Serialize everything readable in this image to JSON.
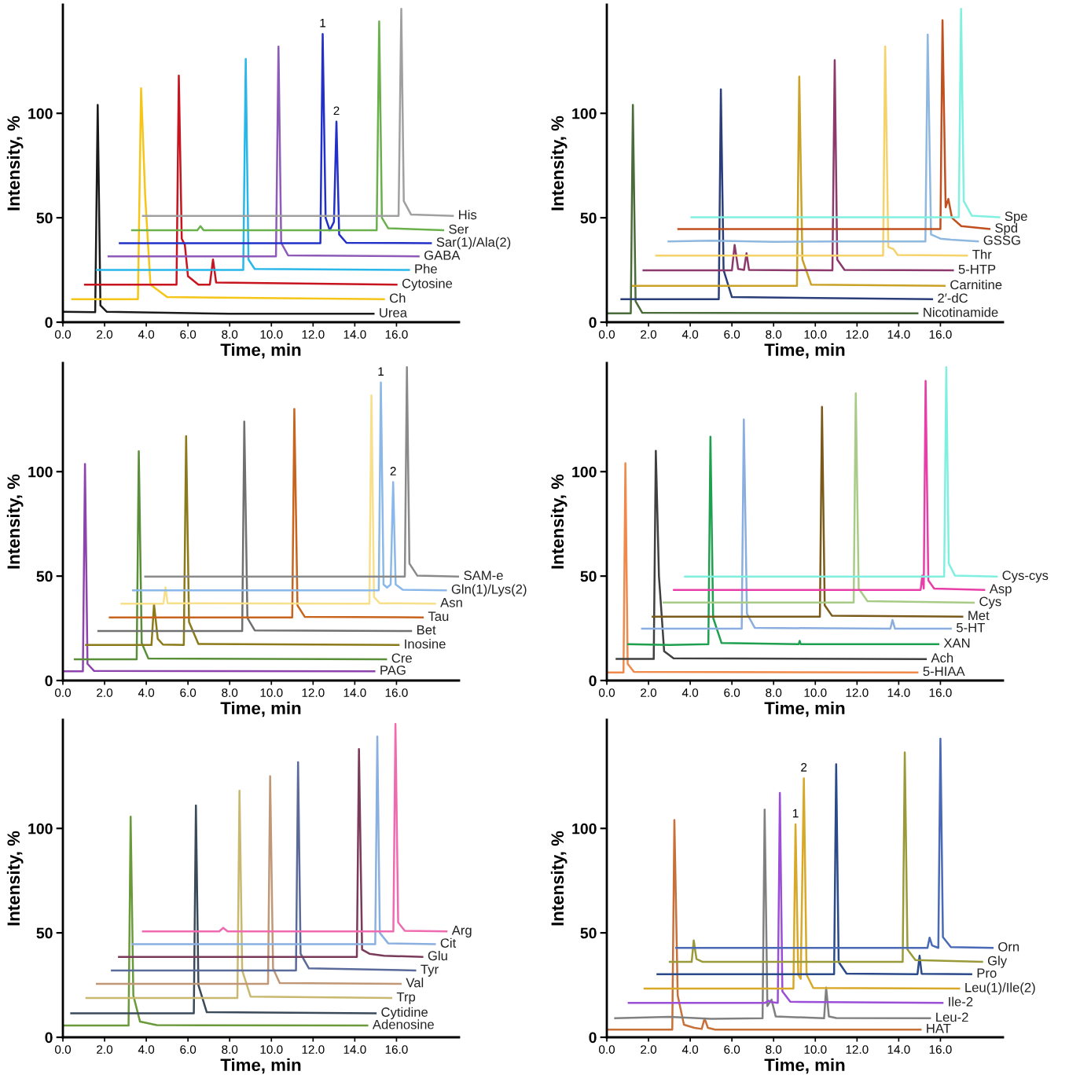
{
  "chart_data": [
    {
      "type": "line",
      "xlabel": "Time, min",
      "ylabel": "Intensity, %",
      "xlim": [
        0,
        19
      ],
      "ylim": [
        0,
        152
      ],
      "xticks": [
        {
          "value": 0,
          "label": "0.0"
        },
        {
          "value": 2,
          "label": "2.0"
        },
        {
          "value": 4,
          "label": "4.0"
        },
        {
          "value": 6,
          "label": "6.0"
        },
        {
          "value": 8,
          "label": "8.0"
        },
        {
          "value": 10,
          "label": "10.0"
        },
        {
          "value": 12,
          "label": "12.0"
        },
        {
          "value": 14,
          "label": "14.0"
        },
        {
          "value": 16,
          "label": "16.0"
        }
      ],
      "yticks": [
        0,
        50,
        100
      ],
      "annotations": [
        {
          "text": "1",
          "x": 12.46,
          "y": 138
        },
        {
          "text": "2",
          "x": 13.12,
          "y": 96
        }
      ],
      "series": [
        {
          "name": "Urea",
          "color": "#1a1a1a",
          "x": [
            0,
            1.55,
            1.67,
            1.8,
            2.1,
            8,
            14.9
          ],
          "values": [
            5,
            4.8,
            104,
            8,
            5,
            4,
            4
          ]
        },
        {
          "name": "Ch",
          "color": "#f5c518",
          "x": [
            0.45,
            3.6,
            3.75,
            3.95,
            4.2,
            5,
            15.4
          ],
          "values": [
            11,
            11,
            112,
            60,
            18,
            12,
            11
          ]
        },
        {
          "name": "Cytosine",
          "color": "#c8141e",
          "x": [
            1.06,
            5.45,
            5.56,
            5.7,
            5.85,
            6.0,
            6.5,
            7.05,
            7.2,
            7.35,
            16.0
          ],
          "values": [
            18,
            18,
            118,
            40,
            37,
            22,
            18,
            18,
            30,
            19,
            18
          ]
        },
        {
          "name": "Phe",
          "color": "#29b6e8",
          "x": [
            1.63,
            8.65,
            8.77,
            8.9,
            9.2,
            16.6
          ],
          "values": [
            25,
            25,
            126,
            30,
            25.5,
            25
          ]
        },
        {
          "name": "GABA",
          "color": "#8e5cb8",
          "x": [
            2.19,
            10.22,
            10.34,
            10.47,
            10.8,
            17.06
          ],
          "values": [
            31.5,
            31.5,
            132,
            38,
            32,
            31.5
          ]
        },
        {
          "name": "Sar(1)/Ala(2)",
          "color": "#2230c8",
          "x": [
            2.73,
            12.35,
            12.46,
            12.6,
            12.8,
            13.0,
            13.12,
            13.25,
            13.6,
            17.65
          ],
          "values": [
            37.8,
            37.8,
            138,
            50,
            44,
            48,
            96,
            42,
            38,
            37.8
          ]
        },
        {
          "name": "Ser",
          "color": "#6ab04c",
          "x": [
            3.32,
            6.45,
            6.6,
            6.75,
            15.05,
            15.17,
            15.3,
            15.6,
            18.24
          ],
          "values": [
            44,
            44,
            46,
            44,
            44,
            144,
            50,
            45,
            44
          ]
        },
        {
          "name": "His",
          "color": "#a0a0a0",
          "x": [
            3.84,
            16.1,
            16.23,
            16.35,
            16.7,
            18.7
          ],
          "values": [
            50.9,
            50.9,
            150,
            58,
            51.5,
            50.9
          ]
        }
      ]
    },
    {
      "type": "line",
      "xlabel": "Time, min",
      "ylabel": "Intensity, %",
      "xlim": [
        0,
        19
      ],
      "ylim": [
        0,
        152
      ],
      "xticks": [
        {
          "value": 0,
          "label": "0.0"
        },
        {
          "value": 2,
          "label": "2.0"
        },
        {
          "value": 4,
          "label": "4.0"
        },
        {
          "value": 6,
          "label": "6.0"
        },
        {
          "value": 8,
          "label": "8.0"
        },
        {
          "value": 10,
          "label": "10.0"
        },
        {
          "value": 12,
          "label": "12.0"
        },
        {
          "value": 14,
          "label": "14.0"
        },
        {
          "value": 16,
          "label": "16.0"
        }
      ],
      "yticks": [
        0,
        50,
        100
      ],
      "series": [
        {
          "name": "Nicotinamide",
          "color": "#4a6b3a",
          "x": [
            0,
            1.15,
            1.25,
            1.38,
            1.7,
            14.9
          ],
          "values": [
            4.2,
            4.2,
            104,
            10,
            4.5,
            4.2
          ]
        },
        {
          "name": "2′-dC",
          "color": "#2a3f7a",
          "x": [
            0.7,
            5.37,
            5.47,
            5.6,
            6.0,
            15.6
          ],
          "values": [
            11,
            11,
            111.5,
            25,
            12,
            11
          ]
        },
        {
          "name": "Carnitine",
          "color": "#c9a227",
          "x": [
            1.25,
            9.12,
            9.23,
            9.38,
            9.8,
            16.2
          ],
          "values": [
            17.4,
            17.4,
            117.6,
            30,
            18,
            17.4
          ]
        },
        {
          "name": "5-HTP",
          "color": "#8b3a6b",
          "x": [
            1.76,
            6.0,
            6.13,
            6.3,
            6.58,
            6.7,
            6.82,
            10.82,
            10.93,
            11.05,
            11.4,
            16.6
          ],
          "values": [
            24.8,
            24.8,
            37,
            25.5,
            25,
            33,
            25,
            24.8,
            125.5,
            30,
            25,
            24.8
          ]
        },
        {
          "name": "Thr",
          "color": "#f5d36a",
          "x": [
            2.37,
            13.25,
            13.35,
            13.5,
            13.75,
            13.95,
            17.27
          ],
          "values": [
            31.9,
            31.9,
            132,
            36,
            35,
            32.2,
            31.9
          ]
        },
        {
          "name": "GSSG",
          "color": "#8fb8e0",
          "x": [
            2.96,
            5,
            8,
            11,
            15.28,
            15.39,
            15.55,
            16,
            16.5,
            17.8
          ],
          "values": [
            38.7,
            39,
            38.5,
            38.7,
            38.7,
            137.7,
            42,
            40,
            39.5,
            38.7
          ]
        },
        {
          "name": "Spd",
          "color": "#c0501f",
          "x": [
            3.43,
            16.0,
            16.1,
            16.25,
            16.38,
            16.55,
            17.0,
            18.35
          ],
          "values": [
            44.6,
            44.6,
            144.6,
            55,
            59,
            50,
            46,
            44.6
          ]
        },
        {
          "name": "Spe",
          "color": "#80f0e0",
          "x": [
            4.06,
            16.88,
            16.99,
            17.12,
            17.5,
            18.82
          ],
          "values": [
            50.2,
            50.2,
            150,
            58,
            51,
            50.2
          ]
        }
      ]
    },
    {
      "type": "line",
      "xlabel": "Time, min",
      "ylabel": "Intensity, %",
      "xlim": [
        0,
        19
      ],
      "ylim": [
        0,
        152
      ],
      "xticks": [
        {
          "value": 0,
          "label": "0.0"
        },
        {
          "value": 2,
          "label": "2.0"
        },
        {
          "value": 4,
          "label": "4.0"
        },
        {
          "value": 6,
          "label": "6.0"
        },
        {
          "value": 8,
          "label": "8.0"
        },
        {
          "value": 10,
          "label": "10.0"
        },
        {
          "value": 12,
          "label": "12.0"
        },
        {
          "value": 14,
          "label": "14.0"
        },
        {
          "value": 16,
          "label": "16.0"
        }
      ],
      "yticks": [
        0,
        50,
        100
      ],
      "annotations": [
        {
          "text": "1",
          "x": 15.25,
          "y": 142.7
        },
        {
          "text": "2",
          "x": 15.84,
          "y": 95
        }
      ],
      "series": [
        {
          "name": "PAG",
          "color": "#8e44ad",
          "x": [
            0,
            0.96,
            1.06,
            1.18,
            1.5,
            14.94
          ],
          "values": [
            4.4,
            4.4,
            103.7,
            8,
            4.6,
            4.4
          ]
        },
        {
          "name": "Cre",
          "color": "#5a8f3a",
          "x": [
            0.57,
            3.54,
            3.64,
            3.78,
            4.1,
            15.5
          ],
          "values": [
            10.2,
            10.2,
            109.8,
            18,
            10.5,
            10.2
          ]
        },
        {
          "name": "Inosine",
          "color": "#8b7a1a",
          "x": [
            1.11,
            4.25,
            4.37,
            4.55,
            4.8,
            5.8,
            5.91,
            6.05,
            6.5,
            16.1
          ],
          "values": [
            17,
            17,
            36.6,
            20,
            17.2,
            17,
            117,
            28,
            17.5,
            17
          ]
        },
        {
          "name": "Bet",
          "color": "#707070",
          "x": [
            1.7,
            8.6,
            8.7,
            8.85,
            9.2,
            16.7
          ],
          "values": [
            23.7,
            23.7,
            124,
            30,
            24,
            23.7
          ]
        },
        {
          "name": "Tau",
          "color": "#c8641e",
          "x": [
            2.25,
            11.0,
            11.1,
            11.25,
            11.6,
            17.26
          ],
          "values": [
            30.2,
            30.2,
            130,
            36,
            30.5,
            30.2
          ]
        },
        {
          "name": "Asn",
          "color": "#f8df8a",
          "x": [
            2.81,
            4.82,
            4.92,
            5.02,
            14.7,
            14.8,
            14.92,
            15.2,
            17.85
          ],
          "values": [
            36.8,
            36.8,
            44.6,
            37,
            36.8,
            136.6,
            40,
            37,
            36.8
          ]
        },
        {
          "name": "Gln(1)/Lys(2)",
          "color": "#8ab8e8",
          "x": [
            3.36,
            15.15,
            15.25,
            15.38,
            15.55,
            15.72,
            15.84,
            15.96,
            16.3,
            18.37
          ],
          "values": [
            43.2,
            43.2,
            142.7,
            46,
            44.5,
            46,
            95,
            46,
            43.5,
            43.2
          ]
        },
        {
          "name": "SAM-e",
          "color": "#8a8a8a",
          "x": [
            3.95,
            16.4,
            16.5,
            16.62,
            17.0,
            18.96
          ],
          "values": [
            49.8,
            49.8,
            150,
            56,
            50.2,
            49.8
          ]
        }
      ]
    },
    {
      "type": "line",
      "xlabel": "Time, min",
      "ylabel": "Intensity, %",
      "xlim": [
        0,
        19
      ],
      "ylim": [
        0,
        152
      ],
      "xticks": [
        {
          "value": 0,
          "label": "0.0"
        },
        {
          "value": 2,
          "label": "2.0"
        },
        {
          "value": 4,
          "label": "4.0"
        },
        {
          "value": 6,
          "label": "6.0"
        },
        {
          "value": 8,
          "label": "8.0"
        },
        {
          "value": 10,
          "label": "10.0"
        },
        {
          "value": 12,
          "label": "12.0"
        },
        {
          "value": 14,
          "label": "14.0"
        },
        {
          "value": 16,
          "label": "16.0"
        }
      ],
      "yticks": [
        0,
        50,
        100
      ],
      "series": [
        {
          "name": "5-HIAA",
          "color": "#f08a4b",
          "x": [
            0,
            0.8,
            0.89,
            1.0,
            1.3,
            14.9
          ],
          "values": [
            3.9,
            3.9,
            104,
            8,
            4.1,
            3.9
          ]
        },
        {
          "name": "Ach",
          "color": "#404040",
          "x": [
            0.47,
            2.25,
            2.35,
            2.5,
            2.75,
            3.2,
            15.3
          ],
          "values": [
            10.3,
            10.3,
            110,
            50,
            14,
            10.6,
            10.3
          ]
        },
        {
          "name": "XAN",
          "color": "#1fa050",
          "x": [
            1.03,
            3,
            4.87,
            4.97,
            5.1,
            5.5,
            9.2,
            9.25,
            9.3,
            15.9
          ],
          "values": [
            17.4,
            17,
            17.4,
            116.7,
            30,
            18,
            17.4,
            19,
            17.4,
            17.4
          ]
        },
        {
          "name": "5-HT",
          "color": "#8aaee0",
          "x": [
            1.69,
            6.47,
            6.57,
            6.72,
            7.1,
            13.6,
            13.7,
            13.82,
            16.5
          ],
          "values": [
            24.8,
            24.8,
            125,
            32,
            25.2,
            24.8,
            29,
            24.8,
            24.8
          ]
        },
        {
          "name": "Met",
          "color": "#7a5a1a",
          "x": [
            2.2,
            10.22,
            10.32,
            10.45,
            10.8,
            17.05
          ],
          "values": [
            30.6,
            30.6,
            131,
            36,
            31,
            30.6
          ]
        },
        {
          "name": "Cys",
          "color": "#a8cc88",
          "x": [
            2.72,
            11.84,
            11.94,
            12.08,
            12.5,
            17.6
          ],
          "values": [
            37.3,
            37.3,
            137.5,
            44,
            38,
            37.3
          ]
        },
        {
          "name": "Asp",
          "color": "#e83ea8",
          "x": [
            3.22,
            15.05,
            15.13,
            15.2,
            15.29,
            15.42,
            15.7,
            18.1
          ],
          "values": [
            43.4,
            43.4,
            50.2,
            44,
            143.4,
            48,
            44,
            43.4
          ]
        },
        {
          "name": "Cys-cys",
          "color": "#7ff0e0",
          "x": [
            3.75,
            16.18,
            16.28,
            16.4,
            16.7,
            18.7
          ],
          "values": [
            49.8,
            49.8,
            150,
            56,
            50.2,
            49.8
          ]
        }
      ]
    },
    {
      "type": "line",
      "xlabel": "Time, min",
      "ylabel": "Intensity, %",
      "xlim": [
        0,
        19
      ],
      "ylim": [
        0,
        152
      ],
      "xticks": [
        {
          "value": 0,
          "label": "0.0"
        },
        {
          "value": 2,
          "label": "2.0"
        },
        {
          "value": 4,
          "label": "4.0"
        },
        {
          "value": 6,
          "label": "6.0"
        },
        {
          "value": 8,
          "label": "8.0"
        },
        {
          "value": 10,
          "label": "10.0"
        },
        {
          "value": 12,
          "label": "12.0"
        },
        {
          "value": 14,
          "label": "14.0"
        },
        {
          "value": 16,
          "label": "16.0"
        }
      ],
      "yticks": [
        0,
        50,
        100
      ],
      "series": [
        {
          "name": "Adenosine",
          "color": "#6a9a3a",
          "x": [
            0,
            3.15,
            3.25,
            3.38,
            3.7,
            4.5,
            14.6
          ],
          "values": [
            5.6,
            5.6,
            105.6,
            20,
            7.5,
            5.8,
            5.6
          ]
        },
        {
          "name": "Cytidine",
          "color": "#3a4a5a",
          "x": [
            0.4,
            6.28,
            6.38,
            6.5,
            6.9,
            15.0
          ],
          "values": [
            11.5,
            11.5,
            111,
            25,
            12,
            11.5
          ]
        },
        {
          "name": "Trp",
          "color": "#c8b870",
          "x": [
            1.13,
            8.37,
            8.47,
            8.6,
            9.0,
            15.75
          ],
          "values": [
            18.8,
            18.8,
            118,
            32,
            19.5,
            18.8
          ]
        },
        {
          "name": "Val",
          "color": "#c09878",
          "x": [
            1.63,
            9.84,
            9.94,
            10.08,
            10.4,
            16.2
          ],
          "values": [
            25.6,
            25.6,
            125,
            33,
            26,
            25.6
          ]
        },
        {
          "name": "Tyr",
          "color": "#5a6a9a",
          "x": [
            2.35,
            11.18,
            11.28,
            11.4,
            11.8,
            16.9
          ],
          "values": [
            32,
            32,
            131.7,
            40,
            33,
            32
          ]
        },
        {
          "name": "Glu",
          "color": "#7a3a5a",
          "x": [
            2.69,
            14.1,
            14.2,
            14.35,
            14.7,
            15.4,
            17.24
          ],
          "values": [
            38.5,
            38.5,
            138,
            42,
            40,
            39,
            38.5
          ]
        },
        {
          "name": "Cit",
          "color": "#8ab0e0",
          "x": [
            3.34,
            14.98,
            15.08,
            15.2,
            15.6,
            17.84
          ],
          "values": [
            44.6,
            44.6,
            144,
            50,
            45,
            44.6
          ]
        },
        {
          "name": "Arg",
          "color": "#f06ab0",
          "x": [
            3.84,
            7.5,
            7.69,
            7.9,
            15.85,
            15.95,
            16.08,
            16.4,
            18.4
          ],
          "values": [
            50.7,
            50.7,
            52.4,
            50.7,
            50.7,
            150,
            55,
            51,
            50.7
          ]
        }
      ]
    },
    {
      "type": "line",
      "xlabel": "Time, min",
      "ylabel": "Intensity, %",
      "xlim": [
        0,
        19
      ],
      "ylim": [
        0,
        152
      ],
      "xticks": [
        {
          "value": 0,
          "label": "0.0"
        },
        {
          "value": 2,
          "label": "2.0"
        },
        {
          "value": 4,
          "label": "4.0"
        },
        {
          "value": 6,
          "label": "6.0"
        },
        {
          "value": 8,
          "label": "8.0"
        },
        {
          "value": 10,
          "label": "10.0"
        },
        {
          "value": 12,
          "label": "12.0"
        },
        {
          "value": 14,
          "label": "14.0"
        },
        {
          "value": 16,
          "label": "16.0"
        }
      ],
      "yticks": [
        0,
        50,
        100
      ],
      "annotations": [
        {
          "text": "1",
          "x": 9.05,
          "y": 102
        },
        {
          "text": "2",
          "x": 9.45,
          "y": 124
        }
      ],
      "series": [
        {
          "name": "HAT",
          "color": "#c8703a",
          "x": [
            0,
            3.14,
            3.24,
            3.4,
            3.7,
            4.2,
            4.55,
            4.69,
            4.85,
            5.2,
            15.05
          ],
          "values": [
            3.7,
            3.7,
            104,
            20,
            6,
            4.5,
            4,
            9,
            4.5,
            3.7,
            3.7
          ]
        },
        {
          "name": "Leu-2",
          "color": "#808080",
          "x": [
            0.4,
            3,
            5,
            7.47,
            7.57,
            7.7,
            7.9,
            8.1,
            10.42,
            10.52,
            10.65,
            11,
            15.5
          ],
          "values": [
            9.1,
            9.8,
            8.8,
            9.1,
            109,
            15,
            18,
            10,
            9.1,
            23.8,
            10,
            9.2,
            9.1
          ]
        },
        {
          "name": "Ile-2",
          "color": "#9b4fd8",
          "x": [
            1.05,
            7.6,
            7.75,
            7.9,
            8.2,
            8.3,
            8.42,
            8.8,
            16.1
          ],
          "values": [
            16.5,
            16.5,
            17.5,
            16.8,
            16.5,
            117,
            22,
            17,
            16.5
          ]
        },
        {
          "name": "Leu(1)/Ile(2)",
          "color": "#d8a828",
          "x": [
            1.81,
            8.95,
            9.05,
            9.18,
            9.3,
            9.45,
            9.58,
            9.9,
            16.9
          ],
          "values": [
            23.3,
            23.3,
            102,
            30,
            28,
            124,
            30,
            23.6,
            23.3
          ]
        },
        {
          "name": "Pro",
          "color": "#2a4a8a",
          "x": [
            2.43,
            10.9,
            11.0,
            11.12,
            11.5,
            14.9,
            15.0,
            15.1,
            17.48
          ],
          "values": [
            30.2,
            30.2,
            130.7,
            36,
            30.5,
            30.2,
            39,
            30.4,
            30.2
          ]
        },
        {
          "name": "Gly",
          "color": "#9a9a3a",
          "x": [
            3.02,
            4.07,
            4.17,
            4.3,
            4.6,
            14.19,
            14.29,
            14.42,
            14.8,
            18.0
          ],
          "values": [
            36.1,
            36.1,
            46.4,
            37.5,
            36.1,
            36.1,
            136.4,
            42,
            37,
            36.1
          ]
        },
        {
          "name": "Orn",
          "color": "#4a6ab8",
          "x": [
            3.33,
            15.38,
            15.48,
            15.6,
            15.9,
            16.0,
            16.12,
            16.5,
            18.5
          ],
          "values": [
            42.8,
            42.8,
            47.7,
            44,
            42.8,
            143,
            48,
            43.2,
            42.8
          ]
        }
      ]
    }
  ]
}
